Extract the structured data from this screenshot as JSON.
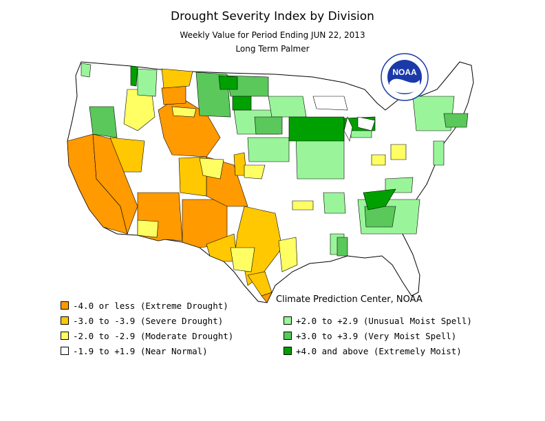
{
  "title": "Drought Severity Index by Division",
  "subtitle": "Weekly Value for Period Ending JUN 22, 2013",
  "index_name": "Long Term Palmer",
  "credit": "Climate Prediction Center, NOAA",
  "logo": {
    "text": "NOAA",
    "icon": "noaa-logo-icon"
  },
  "legend": [
    {
      "label": "-4.0 or less (Extreme Drought)",
      "color": "#ff9a00"
    },
    {
      "label": "-3.0 to -3.9 (Severe Drought)",
      "color": "#ffc800"
    },
    {
      "label": "-2.0 to -2.9 (Moderate Drought)",
      "color": "#ffff64"
    },
    {
      "label": "-1.9 to +1.9 (Near Normal)",
      "color": "#ffffff"
    },
    {
      "label": "+2.0 to +2.9 (Unusual Moist Spell)",
      "color": "#9af59a"
    },
    {
      "label": "+3.0 to +3.9 (Very Moist Spell)",
      "color": "#5ac85a"
    },
    {
      "label": "+4.0 and above (Extremely Moist)",
      "color": "#00a000"
    }
  ]
}
